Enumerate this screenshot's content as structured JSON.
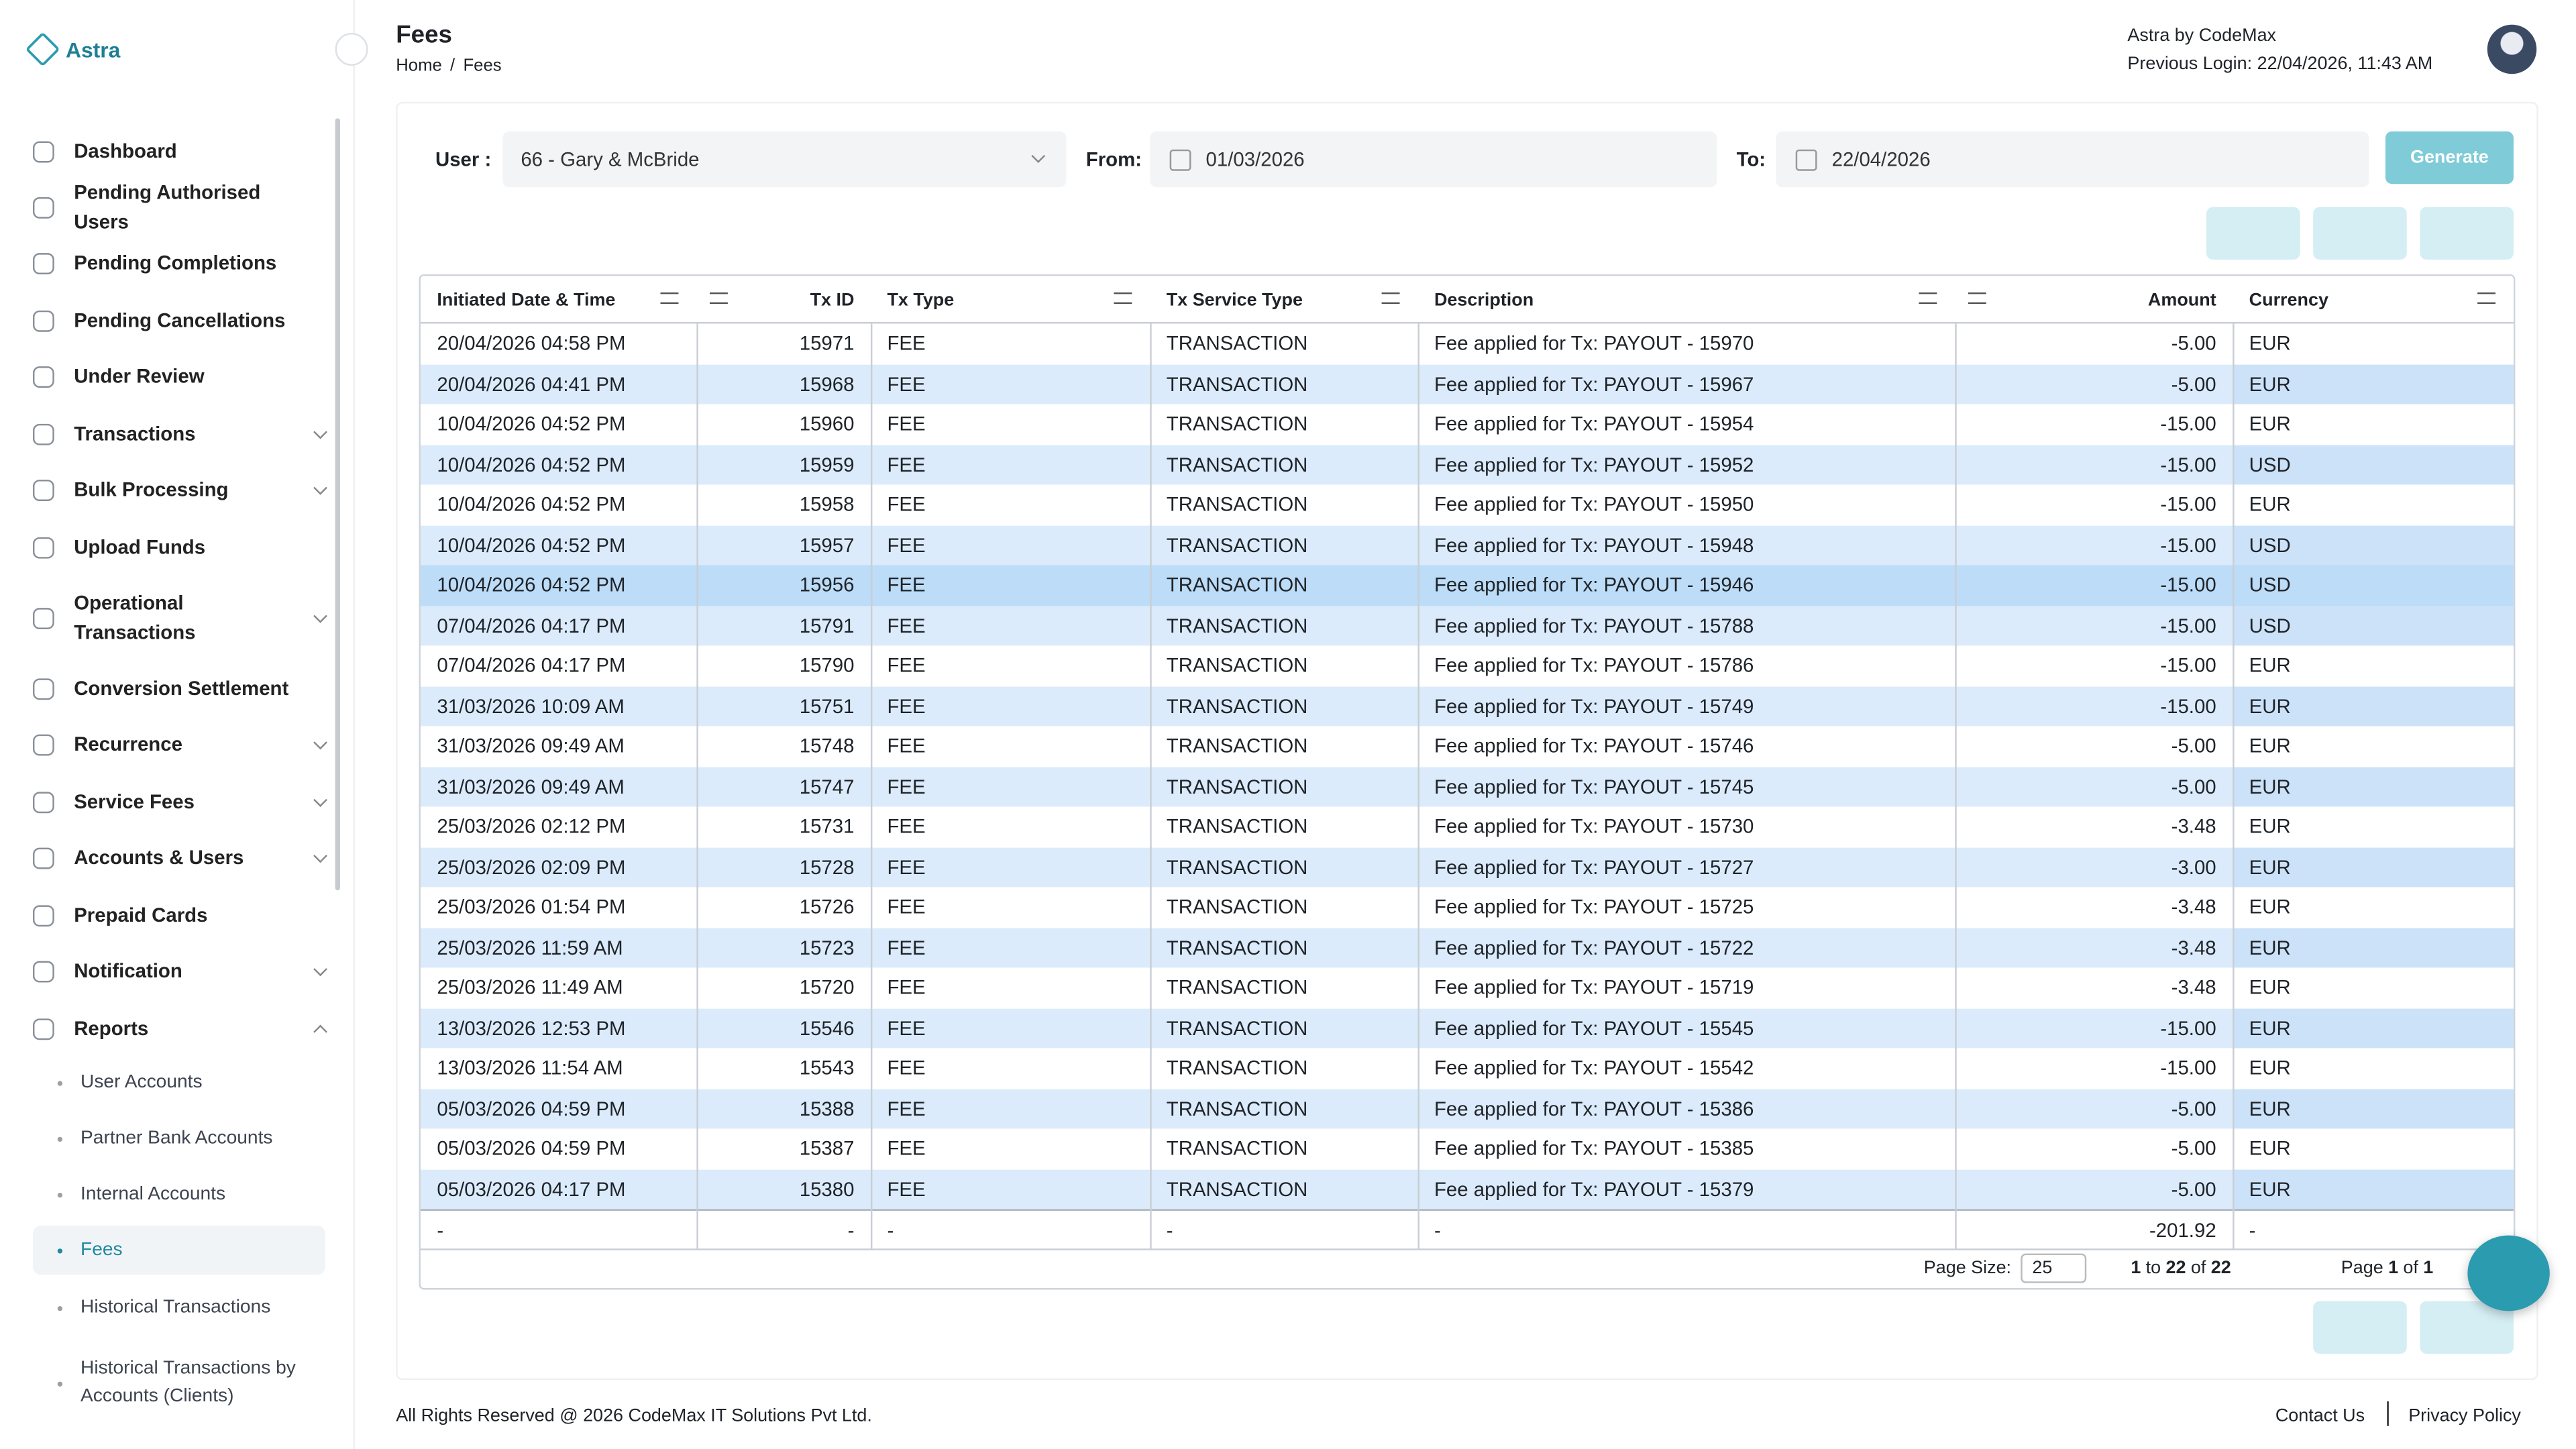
{
  "brand": {
    "name": "Astra"
  },
  "header": {
    "title": "Fees",
    "breadcrumb": [
      "Home",
      "Fees"
    ],
    "user": "Astra by CodeMax",
    "last_login": "Previous Login: 22/04/2026, 11:43 AM"
  },
  "sidebar": {
    "items": [
      {
        "label": "Dashboard",
        "expandable": false
      },
      {
        "label": "Pending Authorised Users",
        "expandable": false
      },
      {
        "label": "Pending Completions",
        "expandable": false
      },
      {
        "label": "Pending Cancellations",
        "expandable": false
      },
      {
        "label": "Under Review",
        "expandable": false
      },
      {
        "label": "Transactions",
        "expandable": true
      },
      {
        "label": "Bulk Processing",
        "expandable": true
      },
      {
        "label": "Upload Funds",
        "expandable": false
      },
      {
        "label": "Operational Transactions",
        "expandable": true
      },
      {
        "label": "Conversion Settlement",
        "expandable": false
      },
      {
        "label": "Recurrence",
        "expandable": true
      },
      {
        "label": "Service Fees",
        "expandable": true
      },
      {
        "label": "Accounts & Users",
        "expandable": true
      },
      {
        "label": "Prepaid Cards",
        "expandable": false
      },
      {
        "label": "Notification",
        "expandable": true
      },
      {
        "label": "Reports",
        "expandable": true,
        "expanded": true
      }
    ],
    "sub_items": [
      "User Accounts",
      "Partner Bank Accounts",
      "Internal Accounts",
      "Fees",
      "Historical Transactions",
      "Historical Transactions by Accounts (Clients)"
    ],
    "active_sub": 3
  },
  "filters": {
    "user_label": "User :",
    "user_value": "66 - Gary & McBride",
    "from_label": "From:",
    "from_value": "01/03/2026",
    "to_label": "To:",
    "to_value": "22/04/2026",
    "generate": "Generate"
  },
  "table": {
    "columns": [
      "Initiated Date & Time",
      "Tx ID",
      "Tx Type",
      "Tx Service Type",
      "Description",
      "Amount",
      "Currency"
    ],
    "rows": [
      [
        "20/04/2026 04:58 PM",
        "15971",
        "FEE",
        "TRANSACTION",
        "Fee applied for Tx: PAYOUT - 15970",
        "-5.00",
        "EUR"
      ],
      [
        "20/04/2026 04:41 PM",
        "15968",
        "FEE",
        "TRANSACTION",
        "Fee applied for Tx: PAYOUT - 15967",
        "-5.00",
        "EUR"
      ],
      [
        "10/04/2026 04:52 PM",
        "15960",
        "FEE",
        "TRANSACTION",
        "Fee applied for Tx: PAYOUT - 15954",
        "-15.00",
        "EUR"
      ],
      [
        "10/04/2026 04:52 PM",
        "15959",
        "FEE",
        "TRANSACTION",
        "Fee applied for Tx: PAYOUT - 15952",
        "-15.00",
        "USD"
      ],
      [
        "10/04/2026 04:52 PM",
        "15958",
        "FEE",
        "TRANSACTION",
        "Fee applied for Tx: PAYOUT - 15950",
        "-15.00",
        "EUR"
      ],
      [
        "10/04/2026 04:52 PM",
        "15957",
        "FEE",
        "TRANSACTION",
        "Fee applied for Tx: PAYOUT - 15948",
        "-15.00",
        "USD"
      ],
      [
        "10/04/2026 04:52 PM",
        "15956",
        "FEE",
        "TRANSACTION",
        "Fee applied for Tx: PAYOUT - 15946",
        "-15.00",
        "USD"
      ],
      [
        "07/04/2026 04:17 PM",
        "15791",
        "FEE",
        "TRANSACTION",
        "Fee applied for Tx: PAYOUT - 15788",
        "-15.00",
        "USD"
      ],
      [
        "07/04/2026 04:17 PM",
        "15790",
        "FEE",
        "TRANSACTION",
        "Fee applied for Tx: PAYOUT - 15786",
        "-15.00",
        "EUR"
      ],
      [
        "31/03/2026 10:09 AM",
        "15751",
        "FEE",
        "TRANSACTION",
        "Fee applied for Tx: PAYOUT - 15749",
        "-15.00",
        "EUR"
      ],
      [
        "31/03/2026 09:49 AM",
        "15748",
        "FEE",
        "TRANSACTION",
        "Fee applied for Tx: PAYOUT - 15746",
        "-5.00",
        "EUR"
      ],
      [
        "31/03/2026 09:49 AM",
        "15747",
        "FEE",
        "TRANSACTION",
        "Fee applied for Tx: PAYOUT - 15745",
        "-5.00",
        "EUR"
      ],
      [
        "25/03/2026 02:12 PM",
        "15731",
        "FEE",
        "TRANSACTION",
        "Fee applied for Tx: PAYOUT - 15730",
        "-3.48",
        "EUR"
      ],
      [
        "25/03/2026 02:09 PM",
        "15728",
        "FEE",
        "TRANSACTION",
        "Fee applied for Tx: PAYOUT - 15727",
        "-3.00",
        "EUR"
      ],
      [
        "25/03/2026 01:54 PM",
        "15726",
        "FEE",
        "TRANSACTION",
        "Fee applied for Tx: PAYOUT - 15725",
        "-3.48",
        "EUR"
      ],
      [
        "25/03/2026 11:59 AM",
        "15723",
        "FEE",
        "TRANSACTION",
        "Fee applied for Tx: PAYOUT - 15722",
        "-3.48",
        "EUR"
      ],
      [
        "25/03/2026 11:49 AM",
        "15720",
        "FEE",
        "TRANSACTION",
        "Fee applied for Tx: PAYOUT - 15719",
        "-3.48",
        "EUR"
      ],
      [
        "13/03/2026 12:53 PM",
        "15546",
        "FEE",
        "TRANSACTION",
        "Fee applied for Tx: PAYOUT - 15545",
        "-15.00",
        "EUR"
      ],
      [
        "13/03/2026 11:54 AM",
        "15543",
        "FEE",
        "TRANSACTION",
        "Fee applied for Tx: PAYOUT - 15542",
        "-15.00",
        "EUR"
      ],
      [
        "05/03/2026 04:59 PM",
        "15388",
        "FEE",
        "TRANSACTION",
        "Fee applied for Tx: PAYOUT - 15386",
        "-5.00",
        "EUR"
      ],
      [
        "05/03/2026 04:59 PM",
        "15387",
        "FEE",
        "TRANSACTION",
        "Fee applied for Tx: PAYOUT - 15385",
        "-5.00",
        "EUR"
      ],
      [
        "05/03/2026 04:17 PM",
        "15380",
        "FEE",
        "TRANSACTION",
        "Fee applied for Tx: PAYOUT - 15379",
        "-5.00",
        "EUR"
      ]
    ],
    "selected_row": 6,
    "totals": [
      "-",
      "-",
      "-",
      "-",
      "-",
      "-201.92",
      "-"
    ]
  },
  "pagination": {
    "page_size_label": "Page Size:",
    "page_size": "25",
    "range": [
      "1",
      "to",
      "22",
      "of",
      "22"
    ],
    "page": [
      "Page",
      "1",
      "of",
      "1"
    ]
  },
  "footer": {
    "copyright": "All Rights Reserved @ 2026 CodeMax IT Solutions Pvt Ltd.",
    "links": [
      "Contact Us",
      "Privacy Policy"
    ]
  }
}
